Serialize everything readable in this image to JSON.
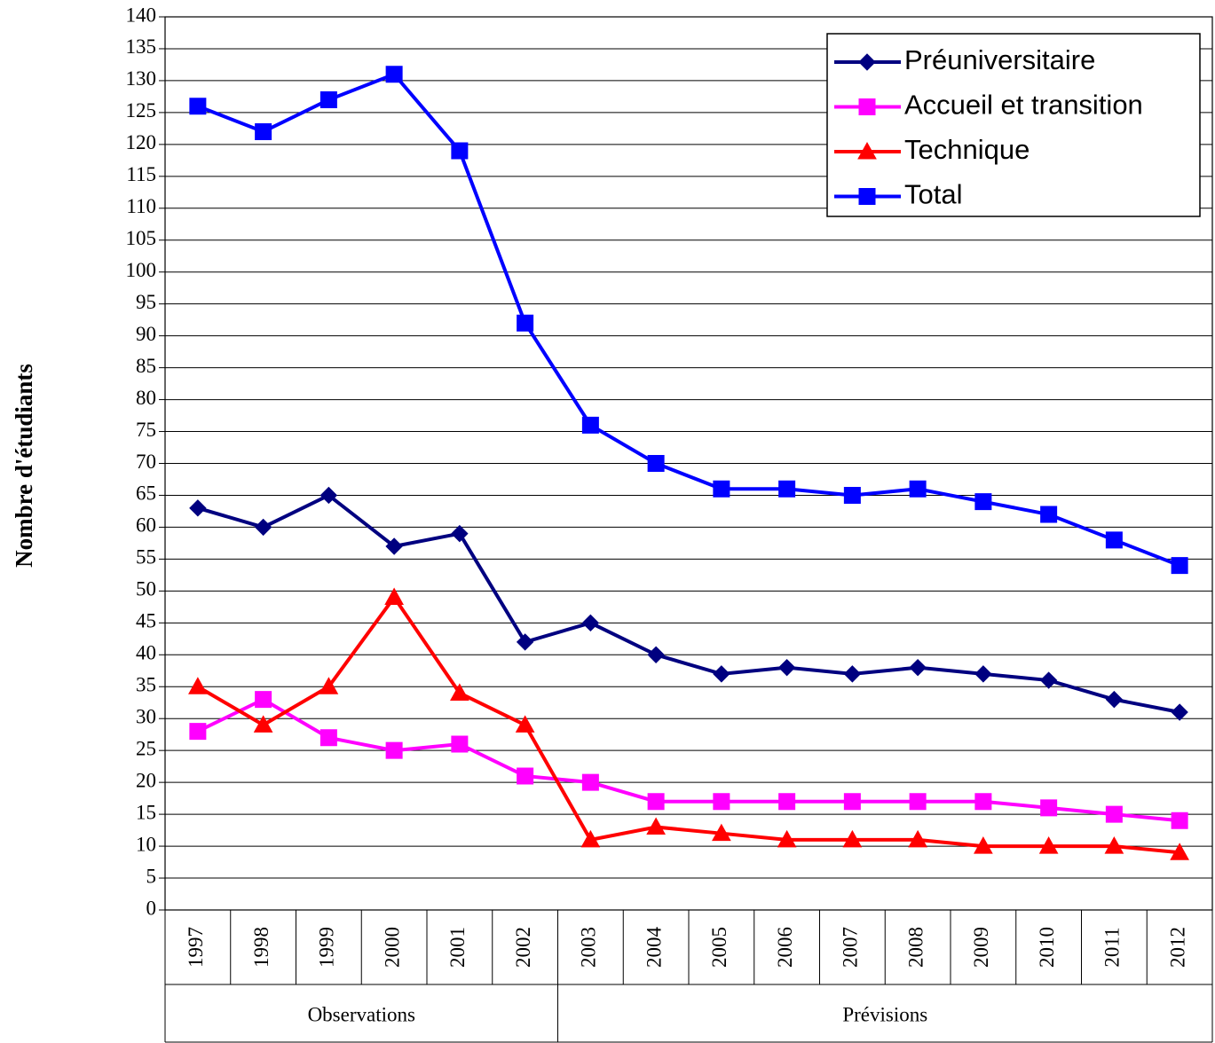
{
  "chart_data": {
    "type": "line",
    "y_label": "Nombre d'étudiants",
    "categories": [
      "1997",
      "1998",
      "1999",
      "2000",
      "2001",
      "2002",
      "2003",
      "2004",
      "2005",
      "2006",
      "2007",
      "2008",
      "2009",
      "2010",
      "2011",
      "2012"
    ],
    "groups": [
      {
        "label": "Observations",
        "count": 6
      },
      {
        "label": "Prévisions",
        "count": 10
      }
    ],
    "series": [
      {
        "name": "Préuniversitaire",
        "color": "#000080",
        "marker": "diamond",
        "values": [
          63,
          60,
          65,
          57,
          59,
          42,
          45,
          40,
          37,
          38,
          37,
          38,
          37,
          36,
          33,
          31
        ]
      },
      {
        "name": "Accueil et transition",
        "color": "#ff00ff",
        "marker": "square",
        "values": [
          28,
          33,
          27,
          25,
          26,
          21,
          20,
          17,
          17,
          17,
          17,
          17,
          17,
          16,
          15,
          14
        ]
      },
      {
        "name": "Technique",
        "color": "#ff0000",
        "marker": "triangle",
        "values": [
          35,
          29,
          35,
          49,
          34,
          29,
          11,
          13,
          12,
          11,
          11,
          11,
          10,
          10,
          10,
          9
        ]
      },
      {
        "name": "Total",
        "color": "#0000ff",
        "marker": "square",
        "values": [
          126,
          122,
          127,
          131,
          119,
          92,
          76,
          70,
          66,
          66,
          65,
          66,
          64,
          62,
          58,
          54
        ]
      }
    ],
    "ylim": [
      0,
      140
    ],
    "yticks": [
      0,
      5,
      10,
      15,
      20,
      25,
      30,
      35,
      40,
      45,
      50,
      55,
      60,
      65,
      70,
      75,
      80,
      85,
      90,
      95,
      100,
      105,
      110,
      115,
      120,
      125,
      130,
      135,
      140
    ],
    "grid": true,
    "legend": "top-right"
  }
}
